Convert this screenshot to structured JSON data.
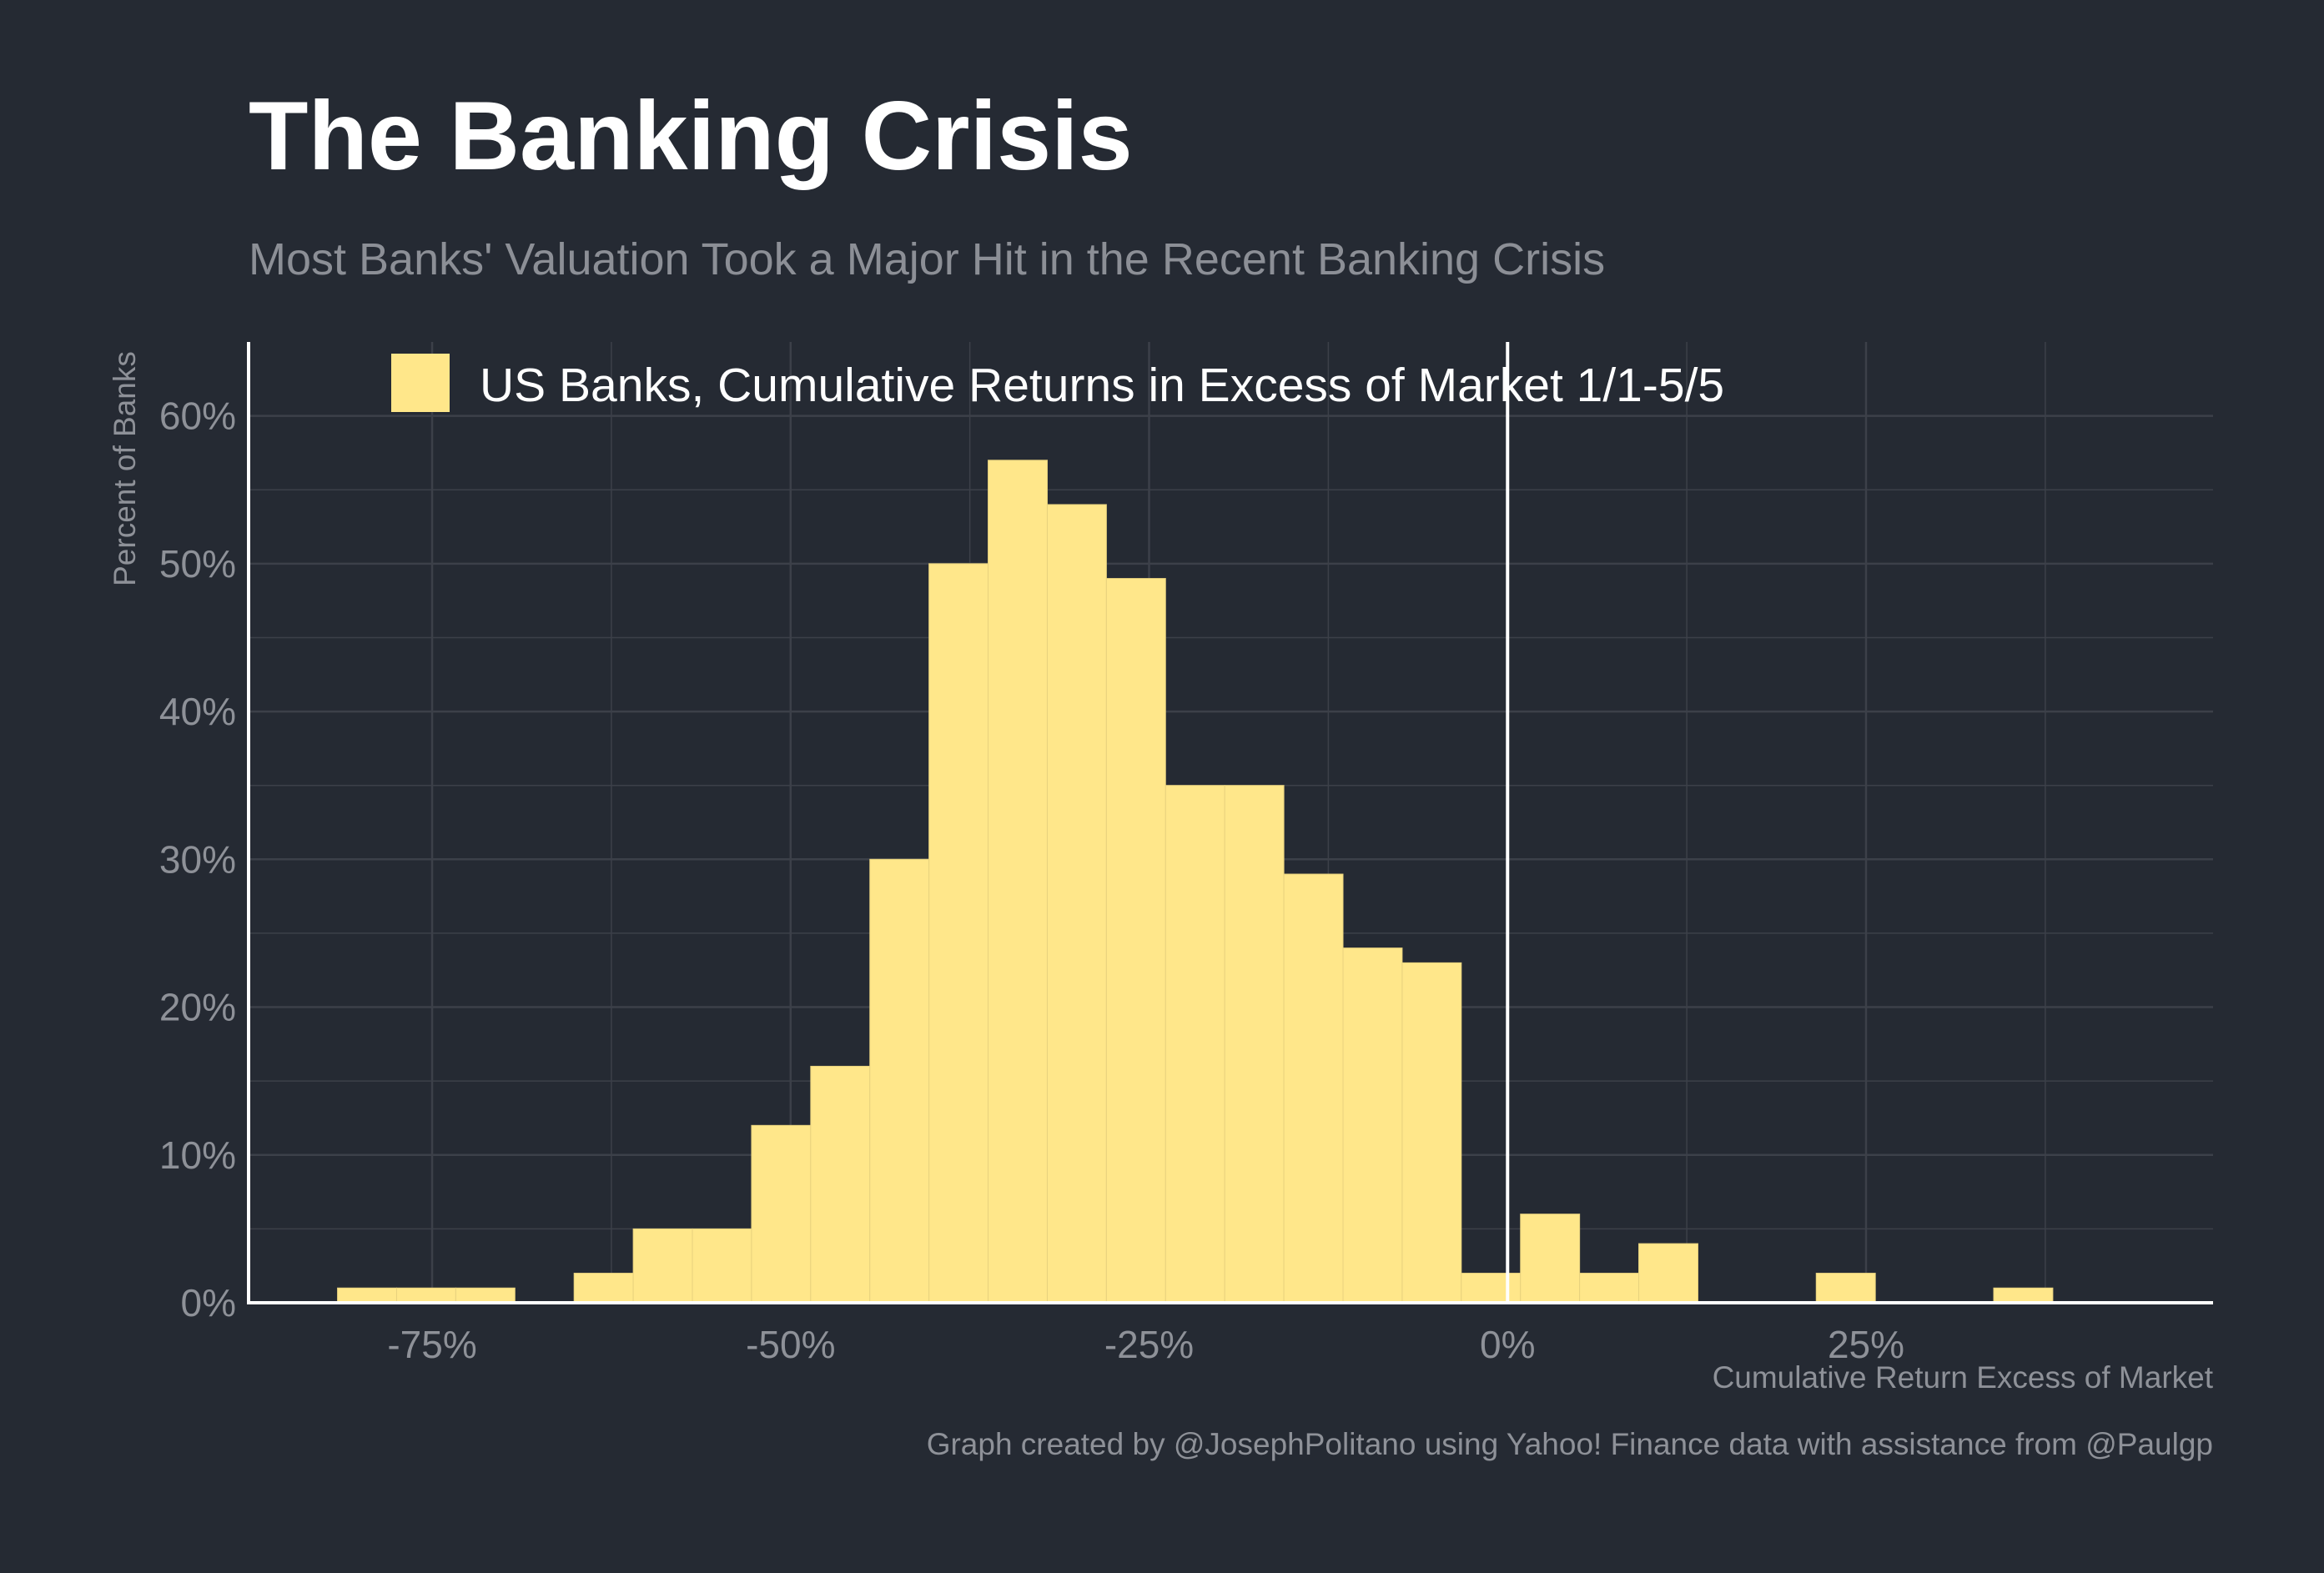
{
  "header": {
    "title": "The Banking Crisis",
    "subtitle": "Most Banks' Valuation Took a Major Hit in the Recent Banking Crisis"
  },
  "caption": "Graph created by @JosephPolitano using Yahoo! Finance data with assistance from @Paulgp",
  "colors": {
    "background": "#252a33",
    "bar_fill": "#ffe78a",
    "grid": "#3c4049",
    "axis": "#ffffff",
    "muted_text": "#8e9198"
  },
  "chart_data": {
    "type": "bar",
    "title": "The Banking Crisis",
    "subtitle": "Most Banks' Valuation Took a Major Hit in the Recent Banking Crisis",
    "xlabel": "Cumulative Return Excess of Market",
    "ylabel": "Percent of Banks",
    "xlim": [
      -87.8,
      49.2
    ],
    "ylim": [
      0,
      65
    ],
    "x_ticks": [
      -75,
      -50,
      -25,
      0,
      25
    ],
    "x_tick_labels": [
      "-75%",
      "-50%",
      "-25%",
      "0%",
      "25%"
    ],
    "y_ticks": [
      0,
      10,
      20,
      30,
      40,
      50,
      60
    ],
    "y_tick_labels": [
      "0%",
      "10%",
      "20%",
      "30%",
      "40%",
      "50%",
      "60%"
    ],
    "bin_width": 4.125,
    "bin_start": -81.6,
    "values": [
      1,
      1,
      1,
      0,
      2,
      5,
      5,
      12,
      16,
      30,
      50,
      57,
      54,
      49,
      35,
      35,
      29,
      24,
      23,
      2,
      6,
      2,
      4,
      0,
      0,
      2,
      0,
      0,
      1
    ],
    "reference_line_x": 0,
    "grid": true,
    "legend_position": "top-left",
    "series": [
      {
        "name": "US Banks, Cumulative Returns in Excess of Market 1/1-5/5"
      }
    ]
  }
}
